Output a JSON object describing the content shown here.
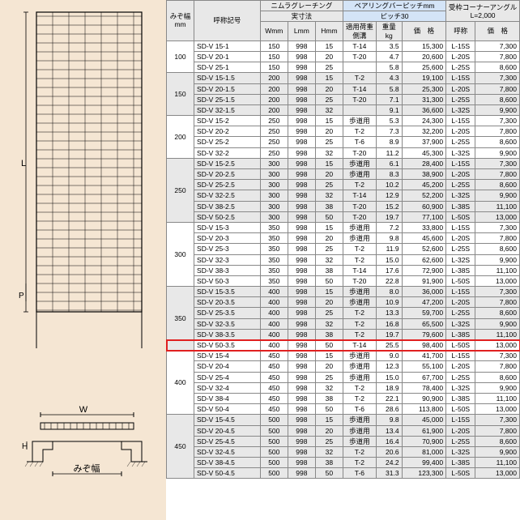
{
  "diagram": {
    "label_L": "L",
    "label_P": "P",
    "label_W": "W",
    "label_H": "H",
    "label_mizo": "みぞ幅"
  },
  "headers": {
    "mizo": "みぞ幅\nmm",
    "kigou": "呼称記号",
    "nimura": "ニムラグレーチング",
    "bearing": "ベアリングバーピッチmm",
    "pitch30": "ピッチ30",
    "corner": "受枠コーナーアングル\nL=2,000",
    "jissun": "実寸法",
    "W": "Wmm",
    "L": "Lmm",
    "H": "Hmm",
    "tekiyou": "適用荷重\n側溝",
    "juuryou": "重量\nkg",
    "kakaku1": "価　格",
    "kigou2": "呼称",
    "kakaku2": "価　格"
  },
  "groups": [
    {
      "span": 100,
      "shade": false,
      "rows": [
        [
          "SD-V 15-1",
          150,
          998,
          15,
          "T-14",
          "3.5",
          "15,300",
          "L-15S",
          "7,300"
        ],
        [
          "SD-V 20-1",
          150,
          998,
          20,
          "T-20",
          "4.7",
          "20,600",
          "L-20S",
          "7,800"
        ],
        [
          "SD-V 25-1",
          150,
          998,
          25,
          "",
          "5.8",
          "25,600",
          "L-25S",
          "8,600"
        ]
      ]
    },
    {
      "span": 150,
      "shade": true,
      "rows": [
        [
          "SD-V 15-1.5",
          200,
          998,
          15,
          "T-2",
          "4.3",
          "19,100",
          "L-15S",
          "7,300"
        ],
        [
          "SD-V 20-1.5",
          200,
          998,
          20,
          "T-14",
          "5.8",
          "25,300",
          "L-20S",
          "7,800"
        ],
        [
          "SD-V 25-1.5",
          200,
          998,
          25,
          "T-20",
          "7.1",
          "31,300",
          "L-25S",
          "8,600"
        ],
        [
          "SD-V 32-1.5",
          200,
          998,
          32,
          "",
          "9.1",
          "36,600",
          "L-32S",
          "9,900"
        ]
      ]
    },
    {
      "span": 200,
      "shade": false,
      "rows": [
        [
          "SD-V 15-2",
          250,
          998,
          15,
          "歩道用",
          "5.3",
          "24,300",
          "L-15S",
          "7,300"
        ],
        [
          "SD-V 20-2",
          250,
          998,
          20,
          "T-2",
          "7.3",
          "32,200",
          "L-20S",
          "7,800"
        ],
        [
          "SD-V 25-2",
          250,
          998,
          25,
          "T-6",
          "8.9",
          "37,900",
          "L-25S",
          "8,600"
        ],
        [
          "SD-V 32-2",
          250,
          998,
          32,
          "T-20",
          "11.2",
          "45,300",
          "L-32S",
          "9,900"
        ]
      ]
    },
    {
      "span": 250,
      "shade": true,
      "rows": [
        [
          "SD-V 15-2.5",
          300,
          998,
          15,
          "歩道用",
          "6.1",
          "28,400",
          "L-15S",
          "7,300"
        ],
        [
          "SD-V 20-2.5",
          300,
          998,
          20,
          "歩道用",
          "8.3",
          "38,900",
          "L-20S",
          "7,800"
        ],
        [
          "SD-V 25-2.5",
          300,
          998,
          25,
          "T-2",
          "10.2",
          "45,200",
          "L-25S",
          "8,600"
        ],
        [
          "SD-V 32-2.5",
          300,
          998,
          32,
          "T-14",
          "12.9",
          "52,200",
          "L-32S",
          "9,900"
        ],
        [
          "SD-V 38-2.5",
          300,
          998,
          38,
          "T-20",
          "15.2",
          "60,900",
          "L-38S",
          "11,100"
        ],
        [
          "SD-V 50-2.5",
          300,
          998,
          50,
          "T-20",
          "19.7",
          "77,100",
          "L-50S",
          "13,000"
        ]
      ]
    },
    {
      "span": 300,
      "shade": false,
      "rows": [
        [
          "SD-V 15-3",
          350,
          998,
          15,
          "歩道用",
          "7.2",
          "33,800",
          "L-15S",
          "7,300"
        ],
        [
          "SD-V 20-3",
          350,
          998,
          20,
          "歩道用",
          "9.8",
          "45,600",
          "L-20S",
          "7,800"
        ],
        [
          "SD-V 25-3",
          350,
          998,
          25,
          "T-2",
          "11.9",
          "52,600",
          "L-25S",
          "8,600"
        ],
        [
          "SD-V 32-3",
          350,
          998,
          32,
          "T-2",
          "15.0",
          "62,600",
          "L-32S",
          "9,900"
        ],
        [
          "SD-V 38-3",
          350,
          998,
          38,
          "T-14",
          "17.6",
          "72,900",
          "L-38S",
          "11,100"
        ],
        [
          "SD-V 50-3",
          350,
          998,
          50,
          "T-20",
          "22.8",
          "91,900",
          "L-50S",
          "13,000"
        ]
      ]
    },
    {
      "span": 350,
      "shade": true,
      "rows": [
        [
          "SD-V 15-3.5",
          400,
          998,
          15,
          "歩道用",
          "8.0",
          "36,000",
          "L-15S",
          "7,300"
        ],
        [
          "SD-V 20-3.5",
          400,
          998,
          20,
          "歩道用",
          "10.9",
          "47,200",
          "L-20S",
          "7,800"
        ],
        [
          "SD-V 25-3.5",
          400,
          998,
          25,
          "T-2",
          "13.3",
          "59,700",
          "L-25S",
          "8,600"
        ],
        [
          "SD-V 32-3.5",
          400,
          998,
          32,
          "T-2",
          "16.8",
          "65,500",
          "L-32S",
          "9,900"
        ],
        [
          "SD-V 38-3.5",
          400,
          998,
          38,
          "T-2",
          "19.7",
          "79,600",
          "L-38S",
          "11,100"
        ],
        [
          "SD-V 50-3.5",
          400,
          998,
          50,
          "T-14",
          "25.5",
          "98,400",
          "L-50S",
          "13,000"
        ]
      ],
      "highlight": 5
    },
    {
      "span": 400,
      "shade": false,
      "rows": [
        [
          "SD-V 15-4",
          450,
          998,
          15,
          "歩道用",
          "9.0",
          "41,700",
          "L-15S",
          "7,300"
        ],
        [
          "SD-V 20-4",
          450,
          998,
          20,
          "歩道用",
          "12.3",
          "55,100",
          "L-20S",
          "7,800"
        ],
        [
          "SD-V 25-4",
          450,
          998,
          25,
          "歩道用",
          "15.0",
          "67,700",
          "L-25S",
          "8,600"
        ],
        [
          "SD-V 32-4",
          450,
          998,
          32,
          "T-2",
          "18.9",
          "78,400",
          "L-32S",
          "9,900"
        ],
        [
          "SD-V 38-4",
          450,
          998,
          38,
          "T-2",
          "22.1",
          "90,900",
          "L-38S",
          "11,100"
        ],
        [
          "SD-V 50-4",
          450,
          998,
          50,
          "T-6",
          "28.6",
          "113,800",
          "L-50S",
          "13,000"
        ]
      ]
    },
    {
      "span": 450,
      "shade": true,
      "rows": [
        [
          "SD-V 15-4.5",
          500,
          998,
          15,
          "歩道用",
          "9.8",
          "45,000",
          "L-15S",
          "7,300"
        ],
        [
          "SD-V 20-4.5",
          500,
          998,
          20,
          "歩道用",
          "13.4",
          "61,900",
          "L-20S",
          "7,800"
        ],
        [
          "SD-V 25-4.5",
          500,
          998,
          25,
          "歩道用",
          "16.4",
          "70,900",
          "L-25S",
          "8,600"
        ],
        [
          "SD-V 32-4.5",
          500,
          998,
          32,
          "T-2",
          "20.6",
          "81,000",
          "L-32S",
          "9,900"
        ],
        [
          "SD-V 38-4.5",
          500,
          998,
          38,
          "T-2",
          "24.2",
          "99,400",
          "L-38S",
          "11,100"
        ],
        [
          "SD-V 50-4.5",
          500,
          998,
          50,
          "T-6",
          "31.3",
          "123,300",
          "L-50S",
          "13,000"
        ]
      ]
    }
  ]
}
